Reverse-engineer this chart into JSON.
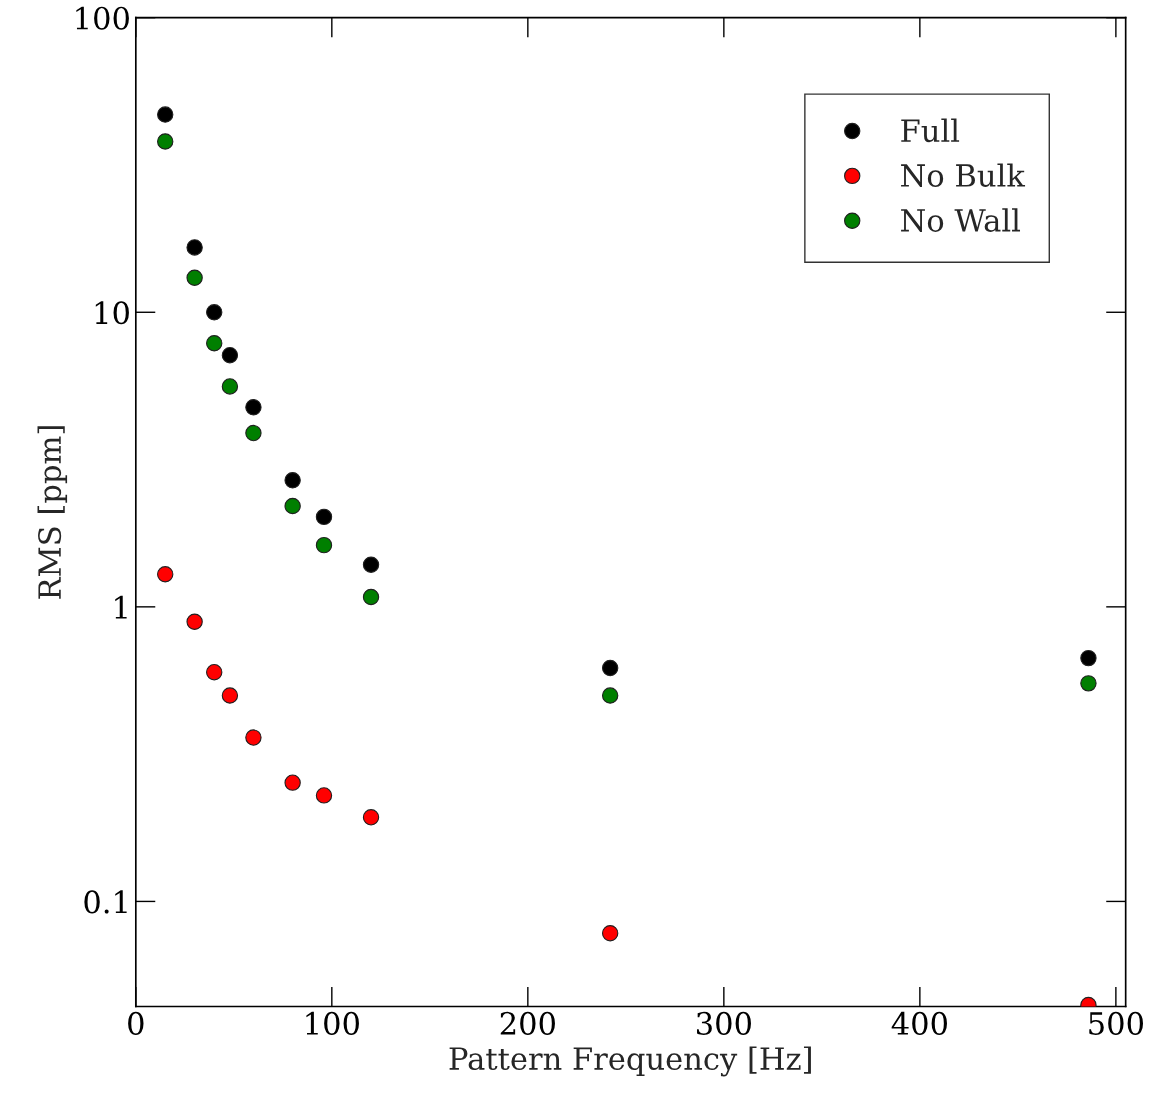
{
  "chart_data": {
    "type": "scatter",
    "xlabel": "Pattern Frequency [Hz]",
    "ylabel": "RMS [ppm]",
    "x": [
      15,
      30,
      40,
      48,
      60,
      80,
      96,
      120,
      242,
      486
    ],
    "series": [
      {
        "name": "Full",
        "color": "#000000",
        "values": [
          46.9,
          16.6,
          10.0,
          7.15,
          4.76,
          2.69,
          2.02,
          1.39,
          0.62,
          0.67
        ]
      },
      {
        "name": "No Bulk",
        "color": "#ff0000",
        "values": [
          1.29,
          0.89,
          0.6,
          0.5,
          0.36,
          0.253,
          0.229,
          0.193,
          0.078,
          0.0445
        ]
      },
      {
        "name": "No Wall",
        "color": "#007f00",
        "values": [
          38,
          13.1,
          7.85,
          5.6,
          3.89,
          2.2,
          1.62,
          1.08,
          0.5,
          0.55
        ]
      }
    ],
    "log": "y",
    "xlim": [
      0,
      505
    ],
    "ylim": [
      0.044,
      100
    ],
    "xticks": [
      0,
      100,
      200,
      300,
      400,
      500
    ],
    "yticks": [
      {
        "value": 0.1,
        "label": "0.1"
      },
      1,
      10,
      100
    ],
    "marker": "circle",
    "legend": "top right",
    "grid": false
  }
}
